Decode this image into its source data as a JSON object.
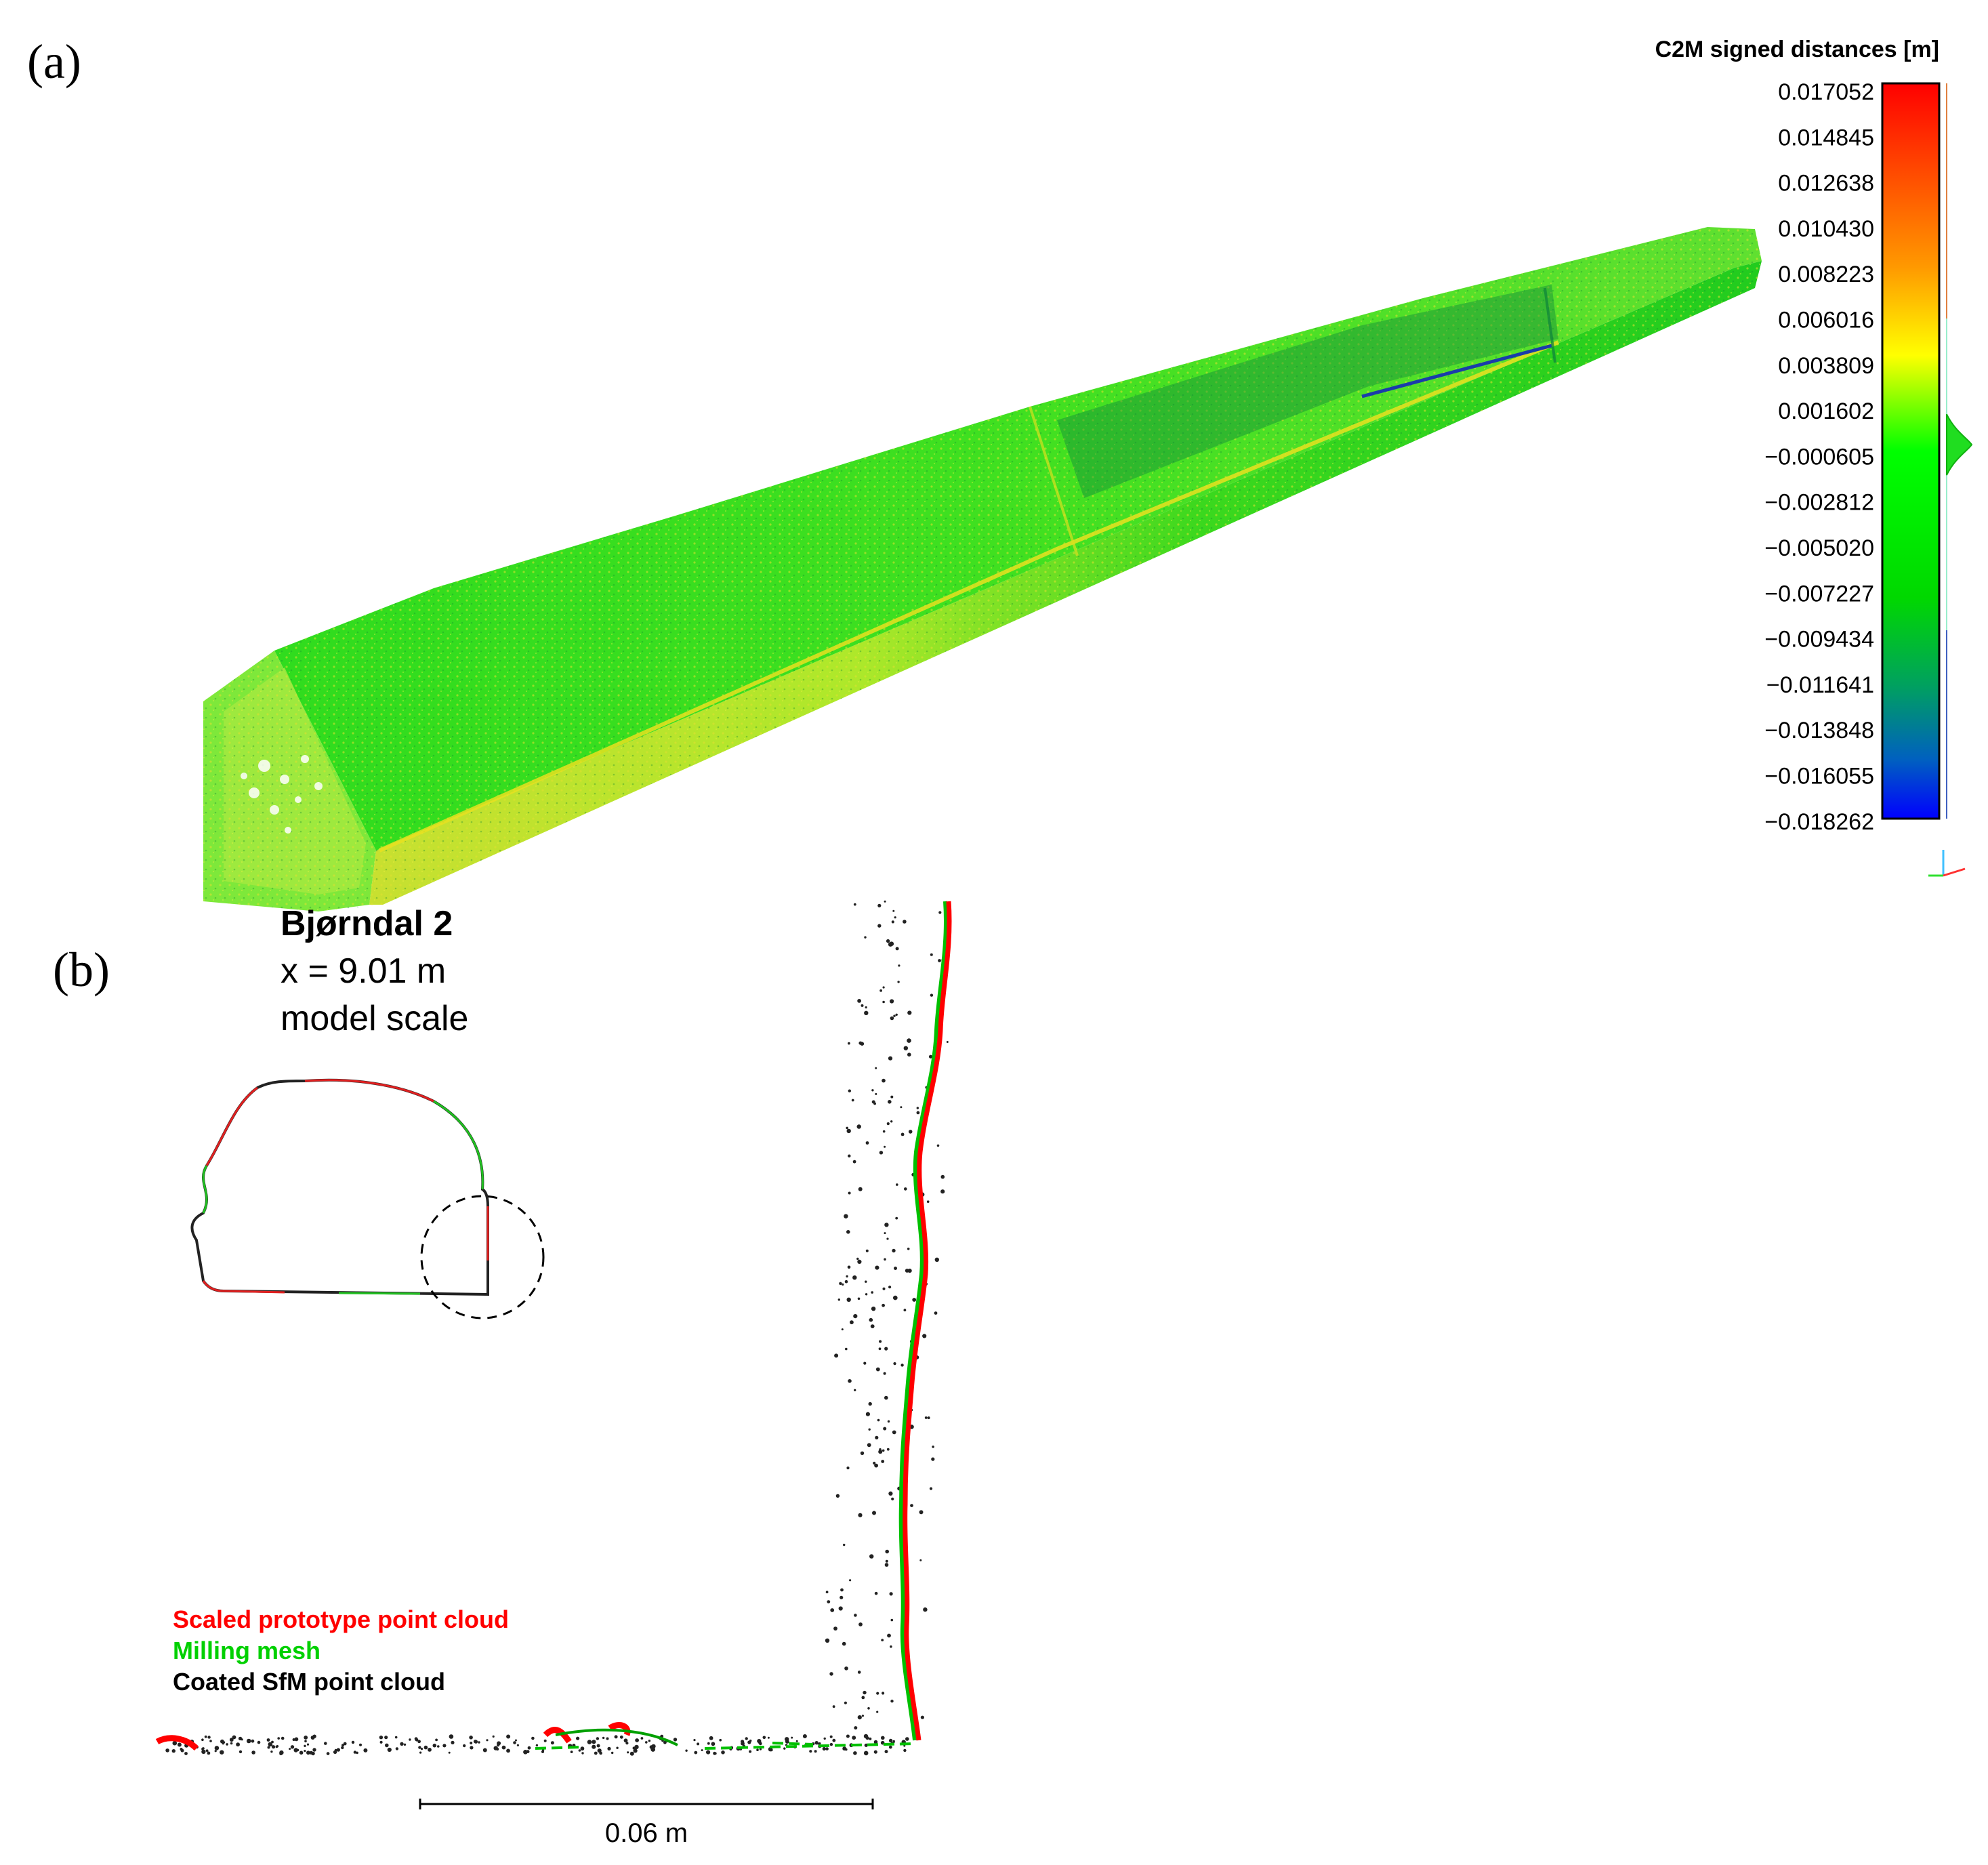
{
  "panel_a": {
    "label": "(a)",
    "colorbar": {
      "title": "C2M signed distances [m]",
      "ticks": [
        "0.017052",
        "0.014845",
        "0.012638",
        "0.010430",
        "0.008223",
        "0.006016",
        "0.003809",
        "0.001602",
        "−0.000605",
        "−0.002812",
        "−0.005020",
        "−0.007227",
        "−0.009434",
        "−0.011641",
        "−0.013848",
        "−0.016055",
        "−0.018262"
      ],
      "range": [
        -0.018262,
        0.017052
      ],
      "colors": {
        "max": "#ff0000",
        "upper": "#ffff00",
        "center": "#00ff00",
        "lower": "#00a05a",
        "min": "#0000ff"
      },
      "histogram_peak": -0.0003
    },
    "tunnel_colors": {
      "main": "#22e01e",
      "yellow": "#e8e020",
      "dark": "#118a3a",
      "blue": "#1a3caa"
    }
  },
  "panel_b": {
    "label": "(b)",
    "title": "Bjørndal 2",
    "position": "x = 9.01 m",
    "scale_note": "model scale",
    "legend": [
      {
        "label": "Scaled prototype point cloud",
        "color": "#ff0000"
      },
      {
        "label": "Milling mesh",
        "color": "#00d000"
      },
      {
        "label": "Coated SfM point cloud",
        "color": "#000000"
      }
    ],
    "scale_bar_label": "0.06 m"
  }
}
